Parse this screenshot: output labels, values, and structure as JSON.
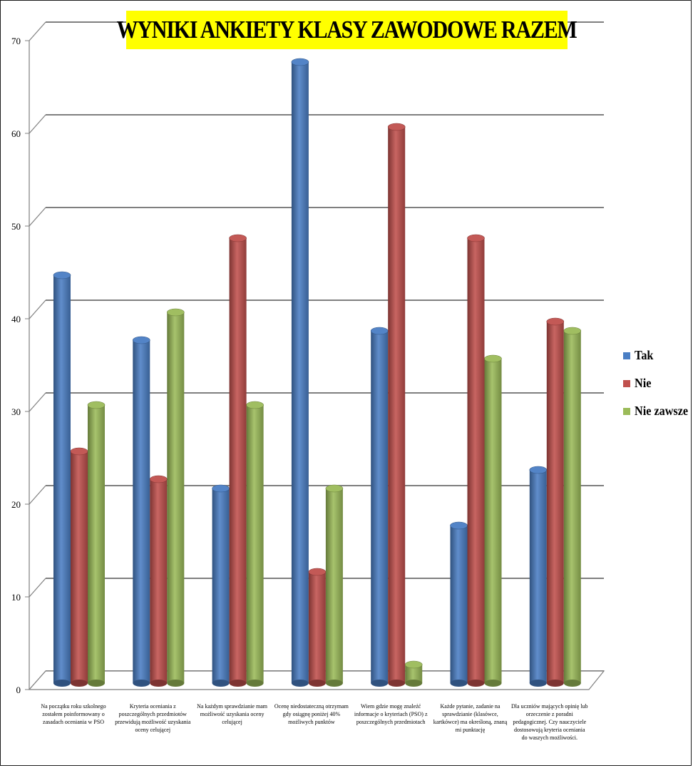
{
  "chart_data": {
    "type": "bar",
    "title": "WYNIKI ANKIETY KLASY ZAWODOWE RAZEM",
    "categories": [
      "Na początku roku szkolnego zostałem poinformowany o zasadach oceniania w PSO",
      "Kryteria oceniania z poszczególnych przedmiotów przewidują możliwość uzyskania oceny celującej",
      "Na każdym sprawdzianie mam możliwość uzyskania oceny celującej",
      "Ocenę niedostateczną otrzymam gdy osiągnę poniżej 40% możliwych punktów",
      "Wiem gdzie mogę znaleźć informacje o kryteriach (PSO) z poszczególnych przedmiotach",
      "Każde pytanie, zadanie na sprawdzianie (klasówce, kartkówce) ma określoną, znaną mi punktację",
      "Dla uczniów mających opinię lub orzeczenie z poradni pedagogicznej. Czy nauczyciele dostosowują kryteria oceniania do waszych możliwości."
    ],
    "series": [
      {
        "name": "Tak",
        "color": "#4a7ec4",
        "values": [
          44,
          37,
          21,
          67,
          38,
          17,
          23
        ]
      },
      {
        "name": "Nie",
        "color": "#c0504d",
        "values": [
          25,
          22,
          48,
          12,
          60,
          48,
          39
        ]
      },
      {
        "name": "Nie zawsze",
        "color": "#9bbb59",
        "values": [
          30,
          40,
          30,
          21,
          2,
          35,
          38
        ]
      }
    ],
    "y_ticks": [
      "0",
      "10",
      "20",
      "30",
      "40",
      "50",
      "60",
      "70"
    ],
    "ylim": [
      0,
      70
    ],
    "grid": true,
    "legend_position": "right"
  }
}
